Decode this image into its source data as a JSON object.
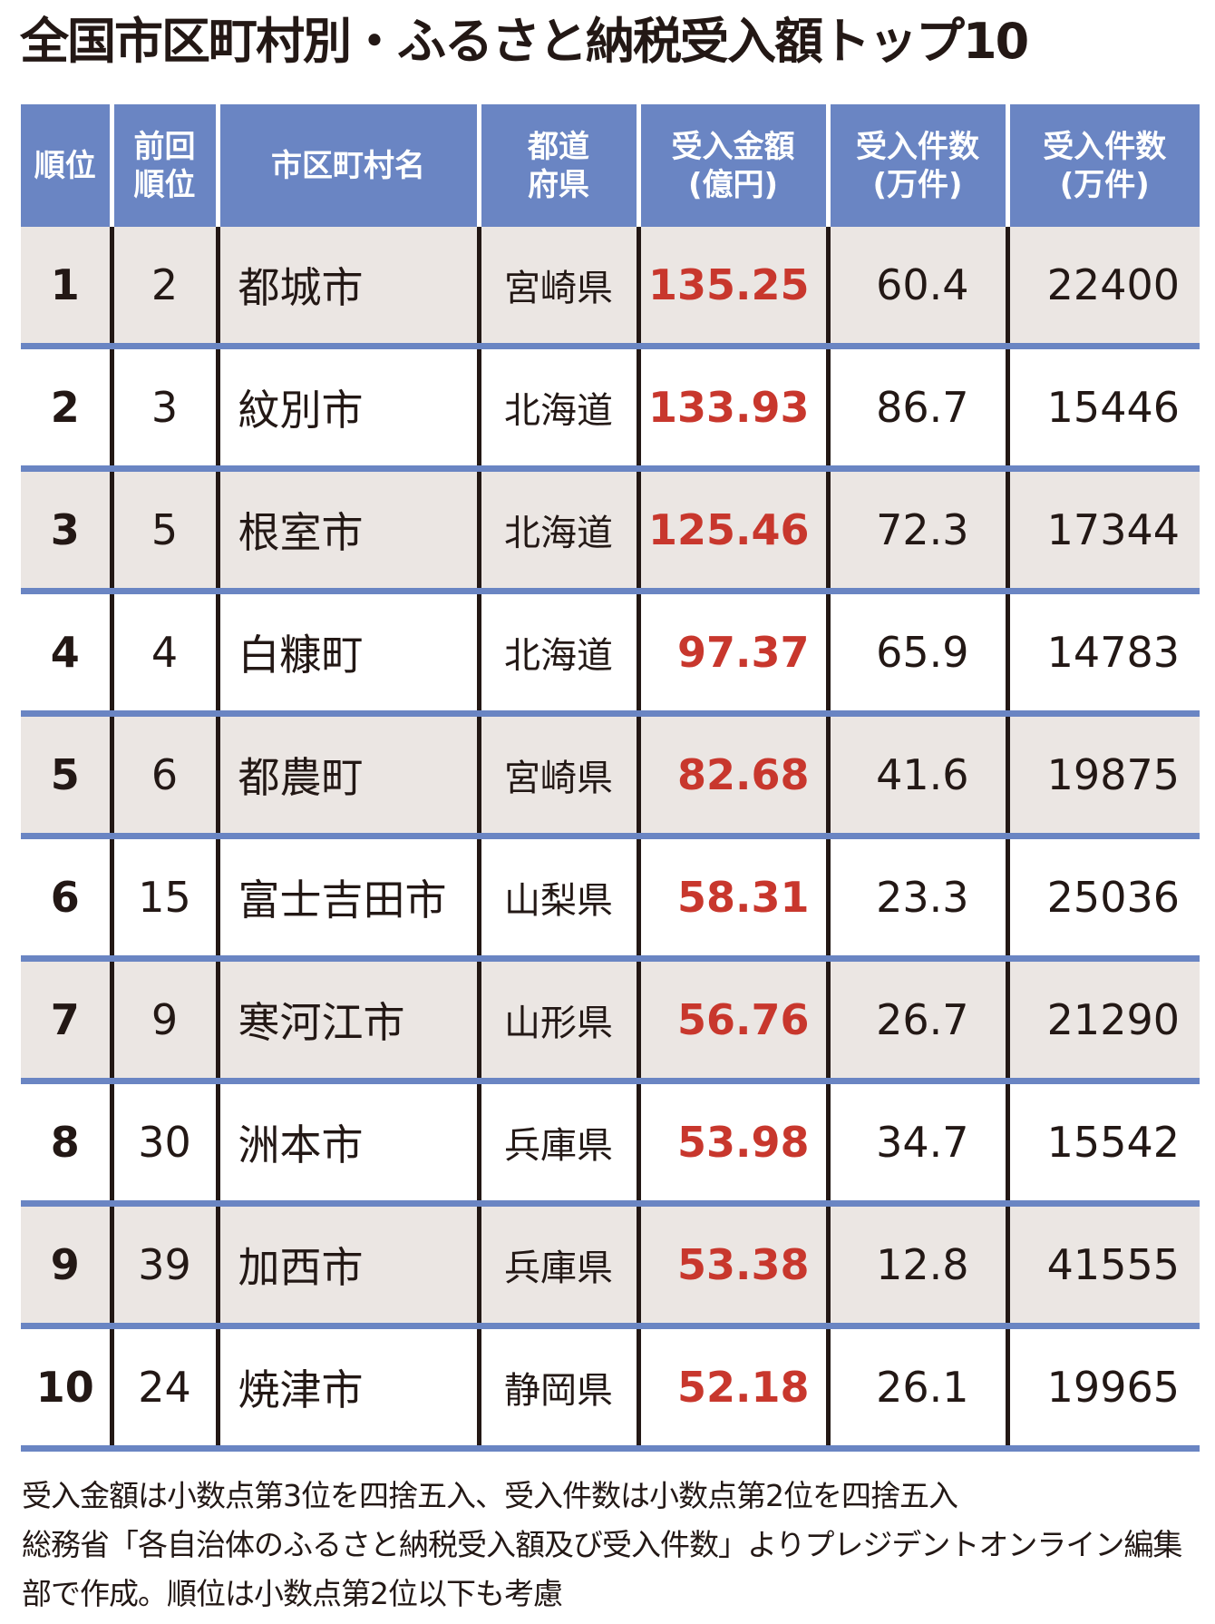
{
  "title": "全国市区町村別・ふるさと納税受入額トップ10",
  "headers": [
    "順位",
    "前回順位",
    "市区町村名",
    "都道府県",
    "受入金額(億円)",
    "受入件数(万件)",
    "受入件数(万件)"
  ],
  "header_lines": [
    [
      "順位"
    ],
    [
      "前回",
      "順位"
    ],
    [
      "市区町村名"
    ],
    [
      "都道",
      "府県"
    ],
    [
      "受入金額",
      "(億円)"
    ],
    [
      "受入件数",
      "(万件)"
    ],
    [
      "受入件数",
      "(万件)"
    ]
  ],
  "rows": [
    [
      "1",
      "2",
      "都城市",
      "宮崎県",
      "135.25",
      "60.4",
      "22400"
    ],
    [
      "2",
      "3",
      "紋別市",
      "北海道",
      "133.93",
      "86.7",
      "15446"
    ],
    [
      "3",
      "5",
      "根室市",
      "北海道",
      "125.46",
      "72.3",
      "17344"
    ],
    [
      "4",
      "4",
      "白糠町",
      "北海道",
      "97.37",
      "65.9",
      "14783"
    ],
    [
      "5",
      "6",
      "都農町",
      "宮崎県",
      "82.68",
      "41.6",
      "19875"
    ],
    [
      "6",
      "15",
      "富士吉田市",
      "山梨県",
      "58.31",
      "23.3",
      "25036"
    ],
    [
      "7",
      "9",
      "寒河江市",
      "山形県",
      "56.76",
      "26.7",
      "21290"
    ],
    [
      "8",
      "30",
      "洲本市",
      "兵庫県",
      "53.98",
      "34.7",
      "15542"
    ],
    [
      "9",
      "39",
      "加西市",
      "兵庫県",
      "53.38",
      "12.8",
      "41555"
    ],
    [
      "10",
      "24",
      "焼津市",
      "静岡県",
      "52.18",
      "26.1",
      "19965"
    ]
  ],
  "notes": [
    "受入金額は小数点第3位を四捨五入、受入件数は小数点第2位を四捨五入",
    "総務省「各自治体のふるさと納税受入額及び受入件数」よりプレジデントオンライン編集部で作成。順位は小数点第2位以下も考慮"
  ],
  "colors": {
    "header_bg": "#6a85c3",
    "amount": "#c8372d",
    "row_alt": "#ebe6e3"
  }
}
